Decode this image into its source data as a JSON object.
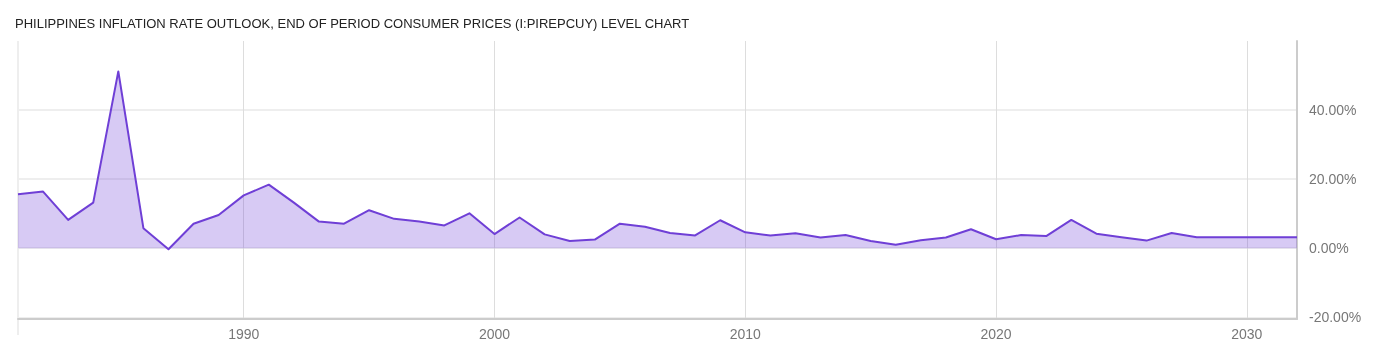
{
  "chart_data": {
    "type": "area",
    "title": "PHILIPPINES INFLATION RATE OUTLOOK, END OF PERIOD CONSUMER PRICES (I:PIREPCUY) LEVEL CHART",
    "x": [
      1981,
      1982,
      1983,
      1984,
      1985,
      1986,
      1987,
      1988,
      1989,
      1990,
      1991,
      1992,
      1993,
      1994,
      1995,
      1996,
      1997,
      1998,
      1999,
      2000,
      2001,
      2002,
      2003,
      2004,
      2005,
      2006,
      2007,
      2008,
      2009,
      2010,
      2011,
      2012,
      2013,
      2014,
      2015,
      2016,
      2017,
      2018,
      2019,
      2020,
      2021,
      2022,
      2023,
      2024,
      2025,
      2026,
      2027,
      2028,
      2029,
      2030,
      2031,
      2032
    ],
    "series": [
      {
        "color": "#6f3fd6",
        "values": [
          15.6,
          16.4,
          8.2,
          13.2,
          51.2,
          5.8,
          -0.3,
          7.1,
          9.6,
          15.3,
          18.4,
          13.2,
          7.7,
          7.1,
          11.0,
          8.5,
          7.7,
          6.6,
          10.1,
          4.1,
          8.9,
          4.0,
          2.1,
          2.5,
          7.1,
          6.2,
          4.4,
          3.7,
          8.1,
          4.6,
          3.7,
          4.3,
          3.1,
          3.8,
          2.1,
          1.0,
          2.3,
          3.1,
          5.5,
          2.6,
          3.8,
          3.5,
          8.2,
          4.2,
          3.2,
          2.2,
          4.4,
          3.2,
          3.2,
          3.2,
          3.2,
          3.2
        ]
      }
    ],
    "xlim": [
      1981,
      2032
    ],
    "xticks": [
      1990,
      2000,
      2010,
      2020,
      2030
    ],
    "ylim": [
      -20.5,
      60
    ],
    "yticks": [
      {
        "value": -20,
        "label": "-20.00%"
      },
      {
        "value": 0,
        "label": "0.00%"
      },
      {
        "value": 20,
        "label": "20.00%"
      },
      {
        "value": 40,
        "label": "40.00%"
      }
    ],
    "grid": true,
    "marker": "none",
    "line_style": "solid"
  }
}
